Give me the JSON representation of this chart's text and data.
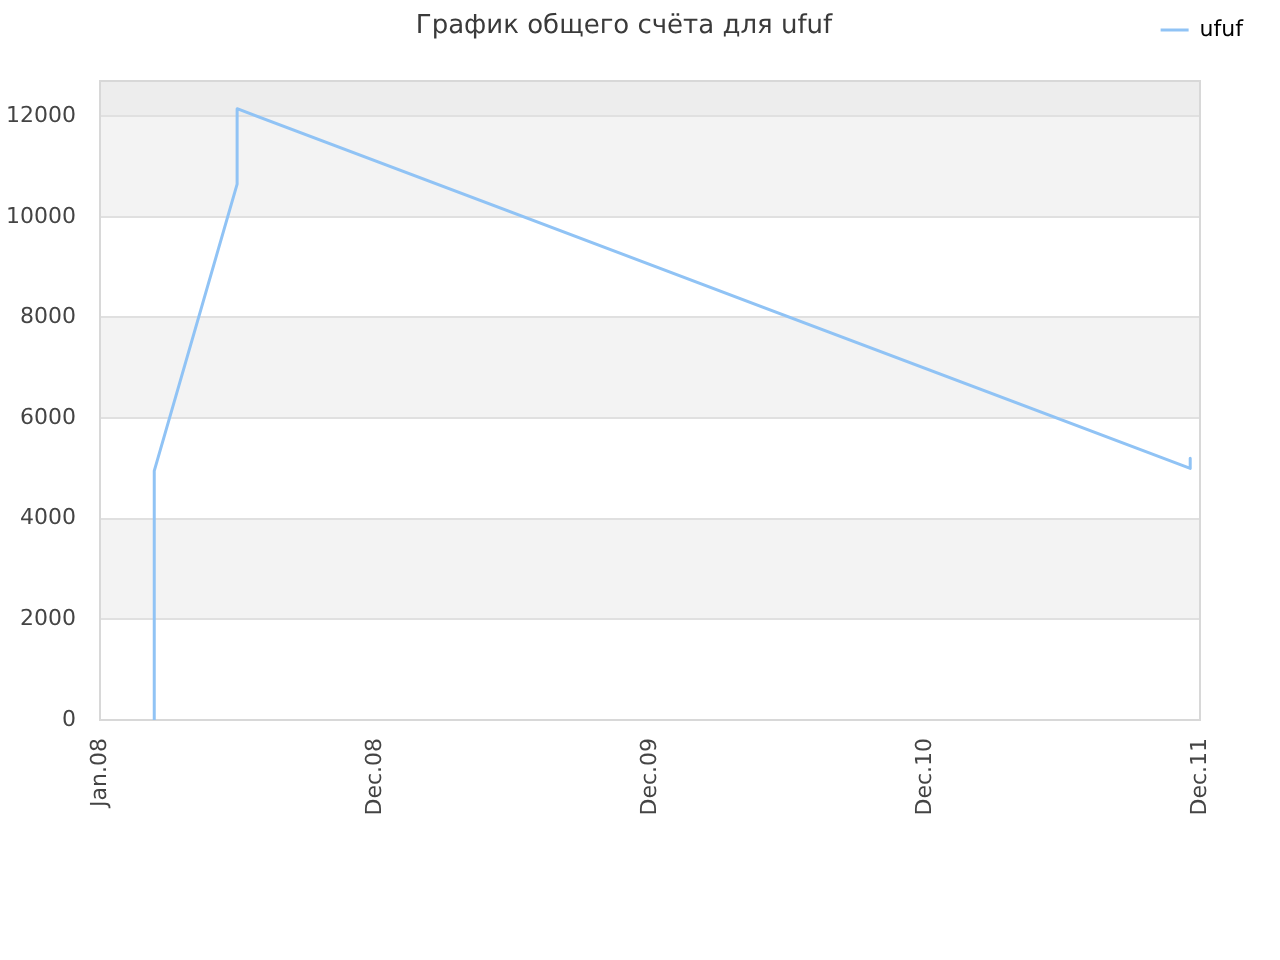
{
  "chart_data": {
    "type": "line",
    "title": "График общего счёта для ufuf",
    "series": [
      {
        "name": "ufuf",
        "color": "#90c3f5",
        "x": [
          "2008-03-13",
          "2008-03-13",
          "2008-07-01",
          "2008-07-01",
          "2011-12-18",
          "2011-12-18"
        ],
        "values": [
          0,
          4950,
          10650,
          12150,
          5000,
          5200
        ]
      }
    ],
    "xlim": [
      "2008-01-01",
      "2011-12-31"
    ],
    "xticks": [
      {
        "value": "2008-01-01",
        "label": "Jan.08"
      },
      {
        "value": "2008-12-31",
        "label": "Dec.08"
      },
      {
        "value": "2009-12-31",
        "label": "Dec.09"
      },
      {
        "value": "2010-12-31",
        "label": "Dec.10"
      },
      {
        "value": "2011-12-31",
        "label": "Dec.11"
      }
    ],
    "ylim": [
      0,
      12700
    ],
    "yticks": [
      0,
      2000,
      4000,
      6000,
      8000,
      10000,
      12000
    ],
    "grid": "y",
    "legend": "top right",
    "marker": "none",
    "line_style": "solid",
    "bands": [
      {
        "axis": "y",
        "from": 2000,
        "to": 4000,
        "color": "#f3f3f3"
      },
      {
        "axis": "y",
        "from": 6000,
        "to": 8000,
        "color": "#f3f3f3"
      },
      {
        "axis": "y",
        "from": 10000,
        "to": 12000,
        "color": "#f3f3f3"
      },
      {
        "axis": "y",
        "from": 12000,
        "to": 12700,
        "color": "#ededed"
      }
    ]
  }
}
